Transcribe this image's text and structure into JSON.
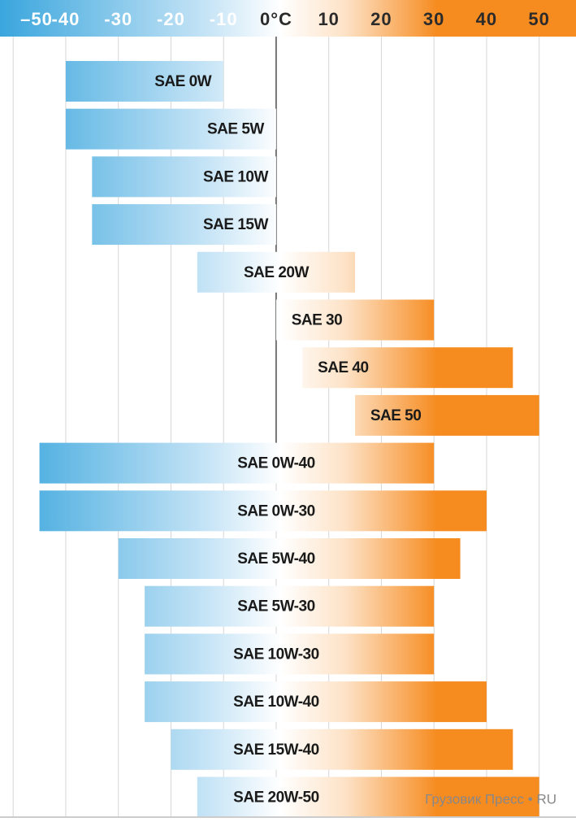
{
  "chart_data": {
    "type": "rangebar",
    "categories": [
      "SAE 0W",
      "SAE 5W",
      "SAE 10W",
      "SAE 15W",
      "SAE 20W",
      "SAE 30",
      "SAE 40",
      "SAE 50",
      "SAE 0W-40",
      "SAE 0W-30",
      "SAE 5W-40",
      "SAE 5W-30",
      "SAE 10W-30",
      "SAE 10W-40",
      "SAE 15W-40",
      "SAE 20W-50"
    ],
    "low": [
      -40,
      -40,
      -35,
      -35,
      -15,
      0,
      5,
      15,
      -45,
      -45,
      -30,
      -25,
      -25,
      -25,
      -20,
      -15
    ],
    "high": [
      -10,
      0,
      0,
      0,
      15,
      30,
      45,
      50,
      30,
      40,
      35,
      30,
      30,
      40,
      45,
      50
    ],
    "xlim": [
      -52.5,
      57
    ],
    "xticks": [
      {
        "value": -50,
        "label": "–50"
      },
      -40,
      -30,
      -20,
      -10,
      {
        "value": 0,
        "label": "0°C"
      },
      10,
      20,
      30,
      40,
      50
    ],
    "cold_color": "#3aa6dd",
    "hot_color": "#f68b1f",
    "grid": true,
    "watermark": "Грузовик Пресс • RU"
  }
}
